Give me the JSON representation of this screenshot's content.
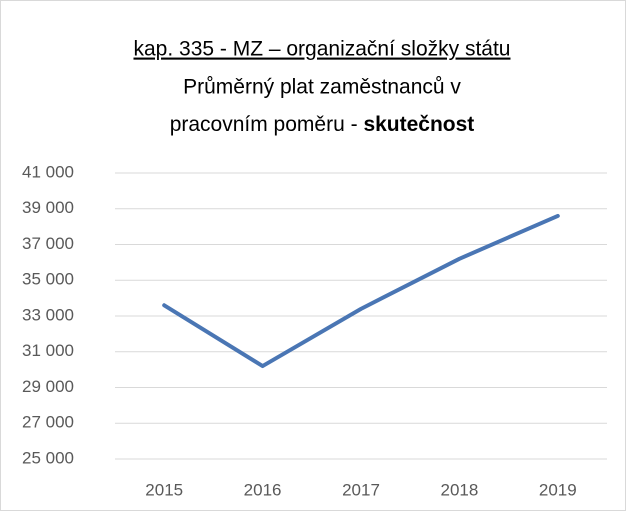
{
  "chart_data": {
    "type": "line",
    "title_lines": [
      "kap. 335 - MZ – organizační složky státu",
      "Průměrný plat zaměstnanců v",
      "pracovním poměru - "
    ],
    "title_emphasis": "skutečnost",
    "categories": [
      "2015",
      "2016",
      "2017",
      "2018",
      "2019"
    ],
    "series": [
      {
        "color": "#4a76b4",
        "values": [
          33600,
          30200,
          33400,
          36200,
          38600
        ]
      }
    ],
    "ylim": [
      25000,
      41000
    ],
    "yticks": [
      {
        "value": 25000,
        "label": "25 000"
      },
      {
        "value": 27000,
        "label": "27 000"
      },
      {
        "value": 29000,
        "label": "29 000"
      },
      {
        "value": 31000,
        "label": "31 000"
      },
      {
        "value": 33000,
        "label": "33 000"
      },
      {
        "value": 35000,
        "label": "35 000"
      },
      {
        "value": 37000,
        "label": "37 000"
      },
      {
        "value": 39000,
        "label": "39 000"
      },
      {
        "value": 41000,
        "label": "41 000"
      }
    ],
    "grid": true
  }
}
